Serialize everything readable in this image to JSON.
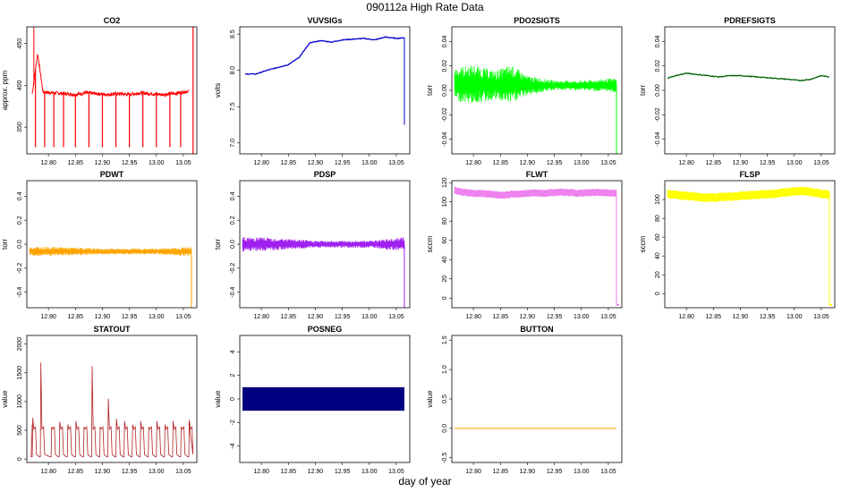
{
  "title": "090112a   High Rate Data",
  "xlabel": "day of year",
  "chart_data": [
    {
      "type": "line",
      "title": "CO2",
      "ylabel": "approx. ppm",
      "color": "#ff0000",
      "xlim": [
        12.76,
        13.075
      ],
      "ylim": [
        318,
        470
      ],
      "xticks": [
        12.8,
        12.85,
        12.9,
        12.95,
        13.0,
        13.05
      ],
      "yticks": [
        350,
        400,
        450
      ],
      "signal": "co2",
      "x": [
        12.77,
        12.78,
        12.79,
        12.81,
        12.83,
        12.85,
        12.87,
        12.89,
        12.91,
        12.93,
        12.95,
        12.97,
        12.99,
        13.01,
        13.03,
        13.05,
        13.06
      ],
      "values": [
        390,
        438,
        392,
        391,
        390,
        389,
        391,
        390,
        389,
        390,
        389,
        391,
        390,
        389,
        390,
        392,
        393
      ]
    },
    {
      "type": "line",
      "title": "VUVSIGs",
      "ylabel": "volts",
      "color": "#0000cd",
      "xlim": [
        12.76,
        13.075
      ],
      "ylim": [
        6.85,
        8.6
      ],
      "xticks": [
        12.8,
        12.85,
        12.9,
        12.95,
        13.0,
        13.05
      ],
      "yticks": [
        7.0,
        7.5,
        8.0,
        8.5
      ],
      "signal": "smooth",
      "x": [
        12.77,
        12.79,
        12.81,
        12.83,
        12.85,
        12.87,
        12.88,
        12.89,
        12.91,
        12.93,
        12.95,
        12.97,
        12.99,
        13.01,
        13.03,
        13.05,
        13.065
      ],
      "values": [
        7.95,
        7.95,
        8.0,
        8.04,
        8.08,
        8.18,
        8.28,
        8.38,
        8.41,
        8.39,
        8.42,
        8.43,
        8.44,
        8.42,
        8.46,
        8.44,
        8.45
      ],
      "drop": 7.25
    },
    {
      "type": "line",
      "title": "PDO2SIGTS",
      "ylabel": "torr",
      "color": "#00ff00",
      "xlim": [
        12.76,
        13.075
      ],
      "ylim": [
        -0.052,
        0.052
      ],
      "xticks": [
        12.8,
        12.85,
        12.9,
        12.95,
        13.0,
        13.05
      ],
      "yticks": [
        -0.04,
        -0.02,
        0.0,
        0.02,
        0.04
      ],
      "signal": "noise",
      "x": [
        12.765,
        12.8,
        12.84,
        12.87,
        12.9,
        12.95,
        13.0,
        13.065
      ],
      "values": [
        0.005,
        0.005,
        0.004,
        0.005,
        0.004,
        0.004,
        0.004,
        0.004
      ],
      "amplitude": [
        0.014,
        0.016,
        0.012,
        0.016,
        0.008,
        0.004,
        0.004,
        0.006
      ],
      "drop": -0.06
    },
    {
      "type": "line",
      "title": "PDREFSIGTS",
      "ylabel": "torr",
      "color": "#006400",
      "xlim": [
        12.76,
        13.075
      ],
      "ylim": [
        -0.052,
        0.052
      ],
      "xticks": [
        12.8,
        12.85,
        12.9,
        12.95,
        13.0,
        13.05
      ],
      "yticks": [
        -0.04,
        -0.02,
        0.0,
        0.02,
        0.04
      ],
      "signal": "smooth",
      "x": [
        12.765,
        12.78,
        12.8,
        12.82,
        12.84,
        12.86,
        12.88,
        12.9,
        12.93,
        12.96,
        12.99,
        13.01,
        13.03,
        13.05,
        13.065
      ],
      "values": [
        0.01,
        0.012,
        0.014,
        0.013,
        0.012,
        0.011,
        0.012,
        0.012,
        0.011,
        0.01,
        0.009,
        0.008,
        0.009,
        0.012,
        0.011
      ]
    },
    {
      "type": "line",
      "title": "PDWT",
      "ylabel": "torr",
      "color": "#ffa500",
      "xlim": [
        12.76,
        13.075
      ],
      "ylim": [
        -0.53,
        0.53
      ],
      "xticks": [
        12.8,
        12.85,
        12.9,
        12.95,
        13.0,
        13.05
      ],
      "yticks": [
        -0.4,
        -0.2,
        0.0,
        0.2,
        0.4
      ],
      "signal": "noise",
      "x": [
        12.765,
        12.8,
        12.9,
        13.0,
        13.065
      ],
      "values": [
        -0.06,
        -0.06,
        -0.06,
        -0.06,
        -0.06
      ],
      "amplitude": [
        0.04,
        0.04,
        0.025,
        0.025,
        0.04
      ],
      "drop": -0.53
    },
    {
      "type": "line",
      "title": "PDSP",
      "ylabel": "torr",
      "color": "#a020f0",
      "xlim": [
        12.76,
        13.075
      ],
      "ylim": [
        -0.53,
        0.53
      ],
      "xticks": [
        12.8,
        12.85,
        12.9,
        12.95,
        13.0,
        13.05
      ],
      "yticks": [
        -0.4,
        -0.2,
        0.0,
        0.2,
        0.4
      ],
      "signal": "noise",
      "x": [
        12.765,
        12.8,
        12.9,
        13.0,
        13.065
      ],
      "values": [
        0.0,
        0.0,
        0.0,
        0.0,
        0.0
      ],
      "amplitude": [
        0.06,
        0.06,
        0.03,
        0.03,
        0.06
      ],
      "drop": -0.53
    },
    {
      "type": "line",
      "title": "FLWT",
      "ylabel": "sccm",
      "color": "#ee82ee",
      "xlim": [
        12.76,
        13.075
      ],
      "ylim": [
        -10,
        122
      ],
      "xticks": [
        12.8,
        12.85,
        12.9,
        12.95,
        13.0,
        13.05
      ],
      "yticks": [
        0,
        20,
        40,
        60,
        80,
        100,
        120
      ],
      "signal": "band",
      "x": [
        12.765,
        12.78,
        12.8,
        12.83,
        12.85,
        12.88,
        12.9,
        12.93,
        12.96,
        13.0,
        13.03,
        13.065
      ],
      "values": [
        112,
        110,
        109,
        108,
        107,
        108,
        109,
        109,
        110,
        109,
        110,
        109
      ],
      "band": 3.2,
      "drop": -7
    },
    {
      "type": "line",
      "title": "FLSP",
      "ylabel": "sccm",
      "color": "#ffff00",
      "xlim": [
        12.76,
        13.075
      ],
      "ylim": [
        -15,
        120
      ],
      "xticks": [
        12.8,
        12.85,
        12.9,
        12.95,
        13.0,
        13.05
      ],
      "yticks": [
        0,
        20,
        40,
        60,
        80,
        100
      ],
      "signal": "band",
      "x": [
        12.765,
        12.78,
        12.8,
        12.83,
        12.85,
        12.88,
        12.9,
        12.93,
        12.96,
        12.99,
        13.01,
        13.03,
        13.05,
        13.065
      ],
      "values": [
        106,
        105,
        104,
        102,
        102,
        103,
        104,
        105,
        106,
        108,
        109,
        108,
        106,
        105
      ],
      "band": 4,
      "drop": -12
    },
    {
      "type": "line",
      "title": "STATOUT",
      "ylabel": "value",
      "color": "#b22222",
      "xlim": [
        12.76,
        13.075
      ],
      "ylim": [
        -60,
        2150
      ],
      "xticks": [
        12.8,
        12.85,
        12.9,
        12.95,
        13.0,
        13.05
      ],
      "yticks": [
        0,
        500,
        1000,
        1500,
        2000
      ],
      "signal": "statout",
      "x": [
        12.77,
        12.79,
        12.805,
        12.82,
        12.835,
        12.85,
        12.865,
        12.875,
        12.895,
        12.91,
        12.925,
        12.94,
        12.955,
        12.97,
        12.985,
        13.0,
        13.015,
        13.03,
        13.045,
        13.06
      ],
      "values": [
        720,
        1680,
        560,
        650,
        600,
        660,
        560,
        1620,
        560,
        1050,
        700,
        660,
        600,
        660,
        560,
        660,
        600,
        660,
        560,
        680
      ]
    },
    {
      "type": "area",
      "title": "POSNEG",
      "ylabel": "value",
      "color": "#000080",
      "xlim": [
        12.76,
        13.075
      ],
      "ylim": [
        -5.4,
        5.4
      ],
      "xticks": [
        12.8,
        12.85,
        12.9,
        12.95,
        13.0,
        13.05
      ],
      "yticks": [
        -4,
        -2,
        0,
        2,
        4
      ],
      "signal": "block",
      "x": [
        12.765,
        13.065
      ],
      "values": [
        1,
        -1
      ]
    },
    {
      "type": "line",
      "title": "BUTTON",
      "ylabel": "value",
      "color": "#ffa500",
      "xlim": [
        12.76,
        13.075
      ],
      "ylim": [
        -0.58,
        1.58
      ],
      "xticks": [
        12.8,
        12.85,
        12.9,
        12.95,
        13.0,
        13.05
      ],
      "yticks": [
        -0.5,
        0.0,
        0.5,
        1.0,
        1.5
      ],
      "signal": "flat",
      "x": [
        12.765,
        13.065
      ],
      "values": [
        0,
        0
      ]
    }
  ]
}
